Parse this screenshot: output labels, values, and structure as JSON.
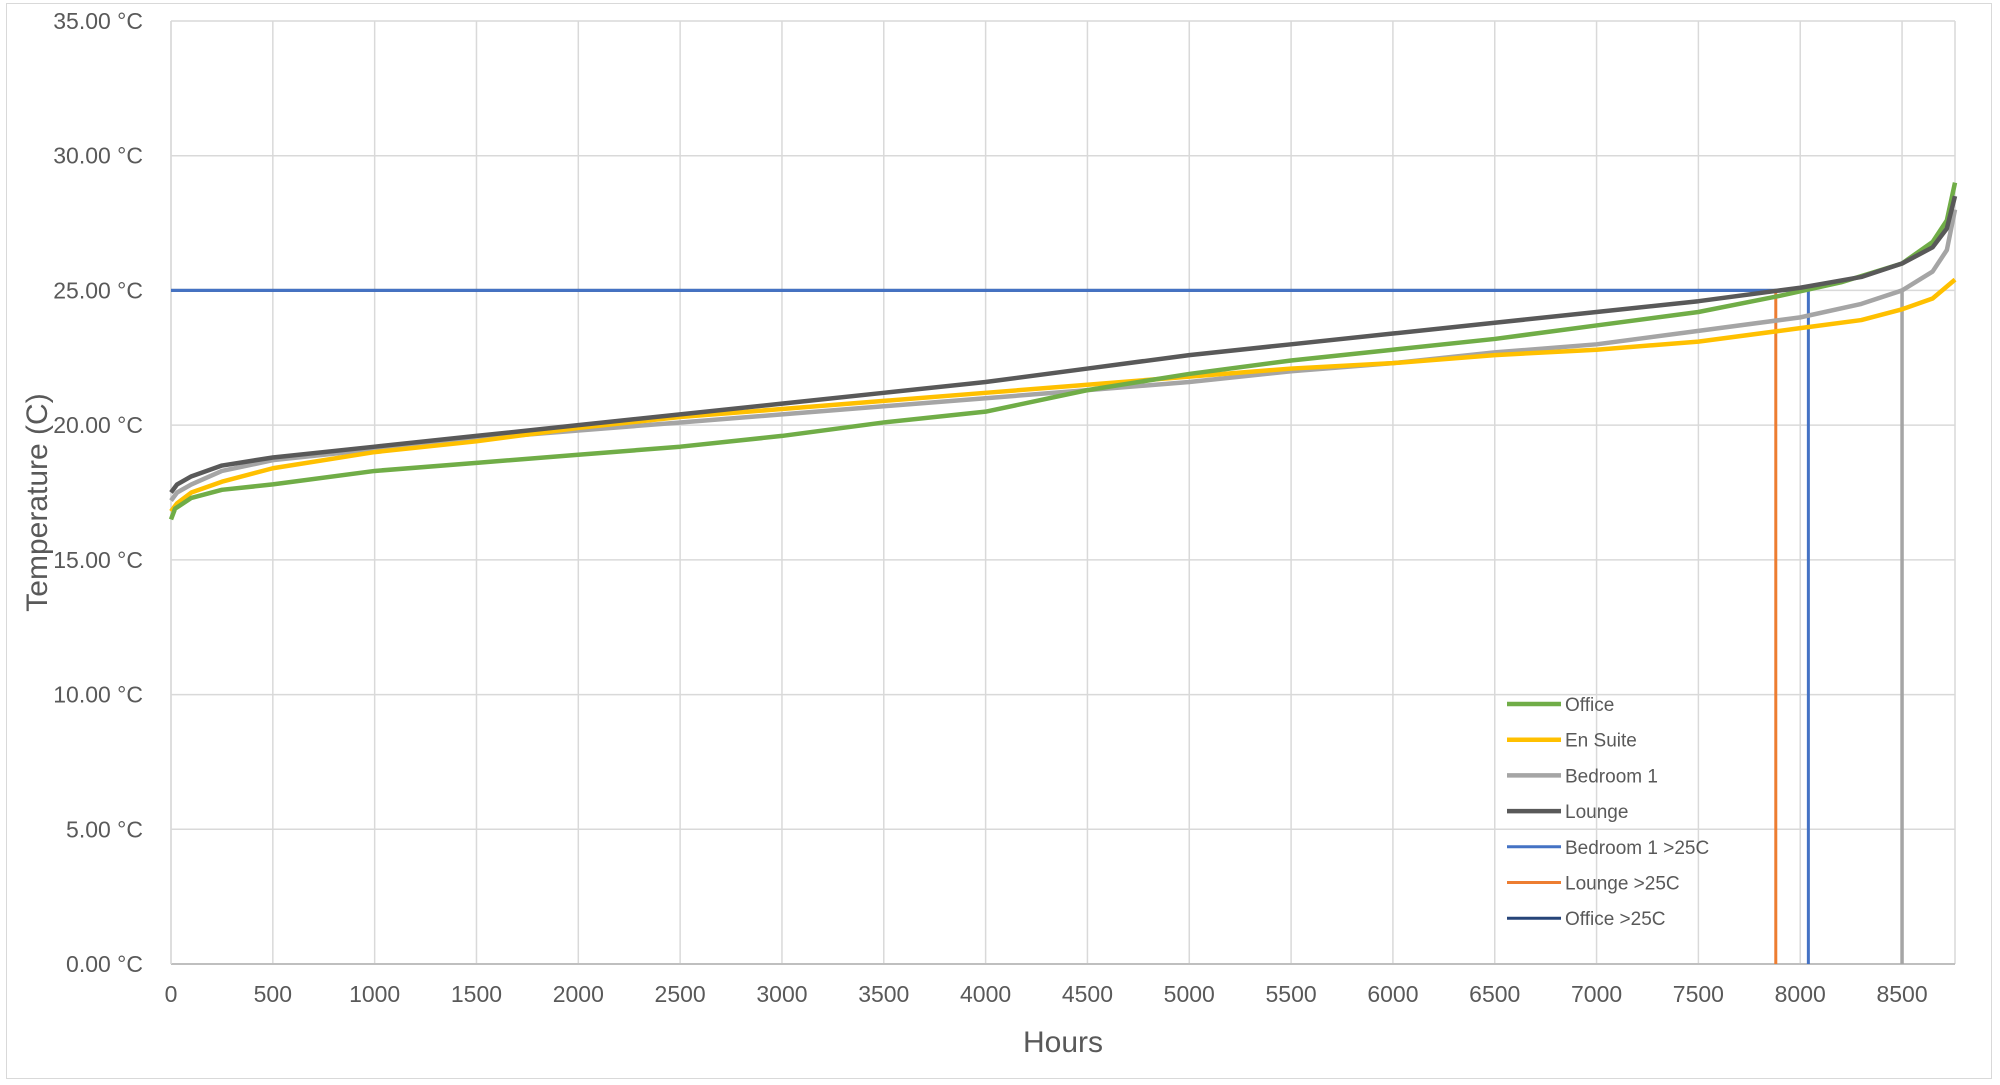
{
  "chart_data": {
    "type": "line",
    "title": "",
    "xlabel": "Hours",
    "ylabel": "Temperature (C)",
    "xlim": [
      0,
      8760
    ],
    "ylim": [
      0,
      35
    ],
    "x_ticks": [
      "0",
      "500",
      "1000",
      "1500",
      "2000",
      "2500",
      "3000",
      "3500",
      "4000",
      "4500",
      "5000",
      "5500",
      "6000",
      "6500",
      "7000",
      "7500",
      "8000",
      "8500"
    ],
    "y_ticks": [
      "0.00 °C",
      "5.00 °C",
      "10.00 °C",
      "15.00 °C",
      "20.00 °C",
      "25.00 °C",
      "30.00 °C",
      "35.00 °C"
    ],
    "grid": true,
    "legend_position": "bottom-right",
    "series": [
      {
        "name": "Office",
        "color": "#70ad47",
        "points": [
          [
            0,
            16.5
          ],
          [
            20,
            16.9
          ],
          [
            100,
            17.3
          ],
          [
            250,
            17.6
          ],
          [
            500,
            17.8
          ],
          [
            1000,
            18.3
          ],
          [
            1500,
            18.6
          ],
          [
            2000,
            18.9
          ],
          [
            2500,
            19.2
          ],
          [
            3000,
            19.6
          ],
          [
            3500,
            20.1
          ],
          [
            4000,
            20.5
          ],
          [
            4500,
            21.3
          ],
          [
            5000,
            21.9
          ],
          [
            5500,
            22.4
          ],
          [
            6000,
            22.8
          ],
          [
            6500,
            23.2
          ],
          [
            7000,
            23.7
          ],
          [
            7500,
            24.2
          ],
          [
            7900,
            24.8
          ],
          [
            8200,
            25.3
          ],
          [
            8500,
            26.0
          ],
          [
            8650,
            26.8
          ],
          [
            8720,
            27.6
          ],
          [
            8760,
            29.0
          ]
        ]
      },
      {
        "name": "En Suite",
        "color": "#ffc000",
        "points": [
          [
            0,
            16.8
          ],
          [
            30,
            17.1
          ],
          [
            100,
            17.5
          ],
          [
            250,
            17.9
          ],
          [
            500,
            18.4
          ],
          [
            1000,
            19.0
          ],
          [
            1500,
            19.4
          ],
          [
            2000,
            19.9
          ],
          [
            2500,
            20.3
          ],
          [
            3000,
            20.6
          ],
          [
            3500,
            20.9
          ],
          [
            4000,
            21.2
          ],
          [
            4500,
            21.5
          ],
          [
            5000,
            21.8
          ],
          [
            5500,
            22.1
          ],
          [
            6000,
            22.3
          ],
          [
            6500,
            22.6
          ],
          [
            7000,
            22.8
          ],
          [
            7500,
            23.1
          ],
          [
            8000,
            23.6
          ],
          [
            8300,
            23.9
          ],
          [
            8500,
            24.3
          ],
          [
            8650,
            24.7
          ],
          [
            8760,
            25.4
          ]
        ]
      },
      {
        "name": "Bedroom 1",
        "color": "#a5a5a5",
        "points": [
          [
            0,
            17.2
          ],
          [
            30,
            17.5
          ],
          [
            100,
            17.8
          ],
          [
            250,
            18.3
          ],
          [
            500,
            18.7
          ],
          [
            1000,
            19.1
          ],
          [
            1500,
            19.5
          ],
          [
            2000,
            19.8
          ],
          [
            2500,
            20.1
          ],
          [
            3000,
            20.4
          ],
          [
            3500,
            20.7
          ],
          [
            4000,
            21.0
          ],
          [
            4500,
            21.3
          ],
          [
            5000,
            21.6
          ],
          [
            5500,
            22.0
          ],
          [
            6000,
            22.3
          ],
          [
            6500,
            22.7
          ],
          [
            7000,
            23.0
          ],
          [
            7500,
            23.5
          ],
          [
            8000,
            24.0
          ],
          [
            8300,
            24.5
          ],
          [
            8500,
            25.0
          ],
          [
            8650,
            25.7
          ],
          [
            8720,
            26.5
          ],
          [
            8760,
            28.0
          ]
        ]
      },
      {
        "name": "Lounge",
        "color": "#595959",
        "points": [
          [
            0,
            17.5
          ],
          [
            30,
            17.8
          ],
          [
            100,
            18.1
          ],
          [
            250,
            18.5
          ],
          [
            500,
            18.8
          ],
          [
            1000,
            19.2
          ],
          [
            1500,
            19.6
          ],
          [
            2000,
            20.0
          ],
          [
            2500,
            20.4
          ],
          [
            3000,
            20.8
          ],
          [
            3500,
            21.2
          ],
          [
            4000,
            21.6
          ],
          [
            4500,
            22.1
          ],
          [
            5000,
            22.6
          ],
          [
            5500,
            23.0
          ],
          [
            6000,
            23.4
          ],
          [
            6500,
            23.8
          ],
          [
            7000,
            24.2
          ],
          [
            7500,
            24.6
          ],
          [
            8000,
            25.1
          ],
          [
            8300,
            25.5
          ],
          [
            8500,
            26.0
          ],
          [
            8650,
            26.6
          ],
          [
            8720,
            27.3
          ],
          [
            8760,
            28.5
          ]
        ]
      },
      {
        "name": "Bedroom 1 >25C",
        "color": "#4472c4",
        "points": [
          [
            0,
            25
          ],
          [
            8040,
            25
          ],
          [
            8040,
            0
          ]
        ]
      },
      {
        "name": "Lounge >25C",
        "color": "#ed7d31",
        "points": [
          [
            7880,
            0
          ],
          [
            7880,
            25
          ]
        ]
      },
      {
        "name": "Office >25C",
        "color": "#264478",
        "points": [
          [
            0,
            25
          ],
          [
            7880,
            25
          ]
        ]
      }
    ],
    "extra_markers": [
      {
        "color": "#a5a5a5",
        "points": [
          [
            8500,
            25
          ],
          [
            8500,
            0
          ]
        ]
      }
    ]
  }
}
